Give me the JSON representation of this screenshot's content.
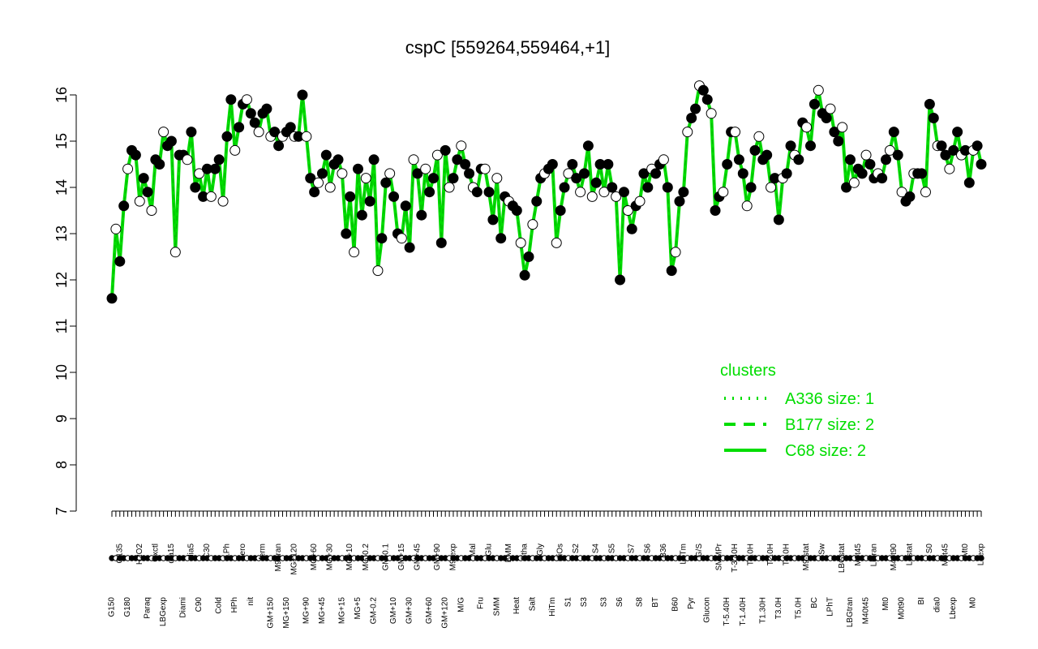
{
  "chart_data": {
    "type": "line",
    "title": "cspC [559264,559464,+1]",
    "xlabel": "",
    "ylabel": "",
    "ylim": [
      7,
      16
    ],
    "y_ticks": [
      "7",
      "8",
      "9",
      "10",
      "11",
      "12",
      "13",
      "14",
      "15",
      "16"
    ],
    "grid": false,
    "legend_position": "bottom-right",
    "line_color": "#00dd00",
    "x_tick_labels": [
      "G150",
      "G135",
      "G180",
      "H2O2",
      "Paraq",
      "Oxctl",
      "LBGexp",
      "dia15",
      "Diami",
      "dia5",
      "C90",
      "C30",
      "Cold",
      "LPh",
      "HPh",
      "aero",
      "nit",
      "ferm",
      "GM+150",
      "M9-tran",
      "MG+150",
      "MG+120",
      "MG+90",
      "MG+60",
      "MG+45",
      "MG+30",
      "MG+15",
      "MG+10",
      "MG+5",
      "MG-0.2",
      "GM-0.2",
      "GM-0.1",
      "GM+10",
      "GM+15",
      "GM+30",
      "GM+45",
      "GM+60",
      "GM+90",
      "GM+120",
      "M9-exp",
      "M/G",
      "Mal",
      "Fru",
      "Glu",
      "SMM",
      "BMM",
      "Heat",
      "Etha",
      "Salt",
      "Gly",
      "HiTm",
      "HiOs",
      "S1",
      "S2",
      "S3",
      "S4",
      "S3",
      "S5",
      "S6",
      "S7",
      "S8",
      "S6",
      "BT",
      "B36",
      "B60",
      "LoTm",
      "Pyr",
      "G/S",
      "Glucon",
      "SMMPr",
      "T-5.40H",
      "T-3.40H",
      "T-1.40H",
      "T0.0H",
      "T1.30H",
      "T2.0H",
      "T3.0H",
      "T4.0H",
      "T5.0H",
      "M9-stat",
      "BC",
      "Sw",
      "LPhT",
      "LBGstat",
      "LBGtran",
      "M0t45",
      "M40t45",
      "Lbtran",
      "Mt0",
      "M40t90",
      "M0t90",
      "Lbstat",
      "BI",
      "S0",
      "dia0",
      "M0t45",
      "Lbexp",
      "Mt0",
      "M0",
      "Lbexp"
    ],
    "series": [
      {
        "values": [
          11.6,
          13.1,
          12.4,
          13.6,
          14.4,
          14.8,
          14.7,
          13.7,
          14.2,
          13.9,
          13.5,
          14.6,
          14.5,
          15.2,
          14.9,
          15.0,
          12.6,
          14.7,
          14.7,
          14.6,
          15.2,
          14.0,
          14.3,
          13.8,
          14.4,
          13.8,
          14.4,
          14.6,
          13.7,
          15.1,
          15.9,
          14.8,
          15.3,
          15.8,
          15.9,
          15.6,
          15.4,
          15.2,
          15.6,
          15.7,
          15.1,
          15.2,
          14.9,
          15.1,
          15.2,
          15.3,
          15.1,
          15.1,
          16.0,
          15.1,
          14.2,
          13.9,
          14.1,
          14.3,
          14.7,
          14.0,
          14.5,
          14.6,
          14.3,
          13.0,
          13.8,
          12.6,
          14.4,
          13.4,
          14.2,
          13.7,
          14.6,
          12.2,
          12.9,
          14.1,
          14.3,
          13.8,
          13.0,
          12.9,
          13.6,
          12.7,
          14.6,
          14.3,
          13.4,
          14.4,
          13.9,
          14.2,
          14.7,
          12.8,
          14.8,
          14.0,
          14.2,
          14.6,
          14.9,
          14.5,
          14.3,
          14.0,
          13.9,
          14.4,
          14.4,
          13.9,
          13.3,
          14.2,
          12.9,
          13.8,
          13.7,
          13.6,
          13.5,
          12.8,
          12.1,
          12.5,
          13.2,
          13.7,
          14.2,
          14.3,
          14.4,
          14.5,
          12.8,
          13.5,
          14.0,
          14.3,
          14.5,
          14.2,
          13.9,
          14.3,
          14.9,
          13.8,
          14.1,
          14.5,
          13.9,
          14.5,
          14.0,
          13.8,
          12.0,
          13.9,
          13.5,
          13.1,
          13.6,
          13.7,
          14.3,
          14.0,
          14.4,
          14.3,
          14.5,
          14.6,
          14.0,
          12.2,
          12.6,
          13.7,
          13.9,
          15.2,
          15.5,
          15.7,
          16.2,
          16.1,
          15.9,
          15.6,
          13.5,
          13.8,
          13.9,
          14.5,
          15.2,
          15.2,
          14.6,
          14.3,
          13.6,
          14.0,
          14.8,
          15.1,
          14.6,
          14.7,
          14.0,
          14.2,
          13.3,
          14.2,
          14.3,
          14.9,
          14.7,
          14.6,
          15.4,
          15.3,
          14.9,
          15.8,
          16.1,
          15.6,
          15.5,
          15.7,
          15.2,
          15.0,
          15.3,
          14.0,
          14.6,
          14.1,
          14.4,
          14.3,
          14.7,
          14.5,
          14.2,
          14.3,
          14.2,
          14.6,
          14.8,
          15.2,
          14.7,
          13.9,
          13.7,
          13.8,
          14.3,
          14.3,
          14.3,
          13.9,
          15.8,
          15.5,
          14.9,
          14.9,
          14.7,
          14.4,
          14.8,
          15.2,
          14.7,
          14.8,
          14.1,
          14.8,
          14.9,
          14.5
        ]
      }
    ],
    "legend": {
      "title": "clusters",
      "entries": [
        {
          "label": "A336 size: 1",
          "style": "dotted"
        },
        {
          "label": "B177 size: 2",
          "style": "dashed"
        },
        {
          "label": "C68 size: 2",
          "style": "solid"
        }
      ]
    }
  }
}
